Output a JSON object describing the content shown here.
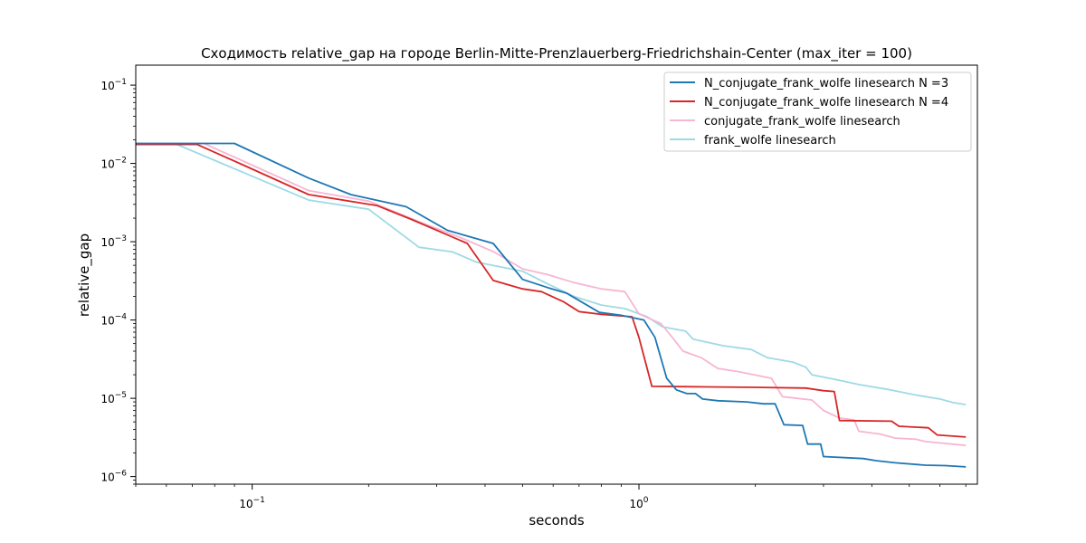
{
  "chart_data": {
    "type": "line",
    "title": "Сходимость relative_gap на городе Berlin-Mitte-Prenzlauerberg-Friedrichshain-Center  (max_iter = 100)",
    "xlabel": "seconds",
    "ylabel": "relative_gap",
    "xscale": "log",
    "yscale": "log",
    "xlim": [
      0.05,
      7.5
    ],
    "ylim": [
      8e-07,
      0.18
    ],
    "grid": false,
    "legend_position": "top-right",
    "x_ticks": [
      {
        "value": 0.1,
        "base": "10",
        "exp": "−1"
      },
      {
        "value": 1,
        "base": "10",
        "exp": "0"
      }
    ],
    "y_ticks": [
      {
        "value": 1e-06,
        "base": "10",
        "exp": "−6"
      },
      {
        "value": 1e-05,
        "base": "10",
        "exp": "−5"
      },
      {
        "value": 0.0001,
        "base": "10",
        "exp": "−4"
      },
      {
        "value": 0.001,
        "base": "10",
        "exp": "−3"
      },
      {
        "value": 0.01,
        "base": "10",
        "exp": "−2"
      },
      {
        "value": 0.1,
        "base": "10",
        "exp": "−1"
      }
    ],
    "series": [
      {
        "name": "N_conjugate_frank_wolfe linesearch N =3",
        "color": "#1f77b4",
        "points": [
          [
            0.05,
            0.018
          ],
          [
            0.09,
            0.018
          ],
          [
            0.14,
            0.0065
          ],
          [
            0.18,
            0.004
          ],
          [
            0.25,
            0.0028
          ],
          [
            0.32,
            0.0014
          ],
          [
            0.42,
            0.00095
          ],
          [
            0.5,
            0.00033
          ],
          [
            0.58,
            0.00026
          ],
          [
            0.65,
            0.00022
          ],
          [
            0.79,
            0.000125
          ],
          [
            0.9,
            0.000115
          ],
          [
            1.03,
            0.0001
          ],
          [
            1.1,
            6e-05
          ],
          [
            1.18,
            1.8e-05
          ],
          [
            1.25,
            1.28e-05
          ],
          [
            1.33,
            1.15e-05
          ],
          [
            1.4,
            1.15e-05
          ],
          [
            1.46,
            9.8e-06
          ],
          [
            1.6,
            9.3e-06
          ],
          [
            1.9,
            9e-06
          ],
          [
            2.1,
            8.5e-06
          ],
          [
            2.25,
            8.5e-06
          ],
          [
            2.37,
            4.6e-06
          ],
          [
            2.65,
            4.5e-06
          ],
          [
            2.73,
            2.6e-06
          ],
          [
            2.95,
            2.6e-06
          ],
          [
            3.0,
            1.8e-06
          ],
          [
            3.8,
            1.7e-06
          ],
          [
            4.1,
            1.6e-06
          ],
          [
            4.6,
            1.5e-06
          ],
          [
            5.5,
            1.4e-06
          ],
          [
            6.2,
            1.38e-06
          ],
          [
            7.0,
            1.33e-06
          ]
        ]
      },
      {
        "name": "N_conjugate_frank_wolfe linesearch N =4",
        "color": "#d62728",
        "points": [
          [
            0.05,
            0.0175
          ],
          [
            0.072,
            0.0175
          ],
          [
            0.095,
            0.0095
          ],
          [
            0.14,
            0.004
          ],
          [
            0.21,
            0.0029
          ],
          [
            0.26,
            0.0019
          ],
          [
            0.36,
            0.00095
          ],
          [
            0.42,
            0.00032
          ],
          [
            0.5,
            0.00025
          ],
          [
            0.56,
            0.00023
          ],
          [
            0.64,
            0.00017
          ],
          [
            0.7,
            0.000128
          ],
          [
            0.8,
            0.000118
          ],
          [
            0.96,
            0.00011
          ],
          [
            1.0,
            6e-05
          ],
          [
            1.08,
            1.42e-05
          ],
          [
            1.5,
            1.4e-05
          ],
          [
            2.0,
            1.38e-05
          ],
          [
            2.7,
            1.35e-05
          ],
          [
            3.0,
            1.25e-05
          ],
          [
            3.2,
            1.22e-05
          ],
          [
            3.3,
            5.2e-06
          ],
          [
            4.5,
            5.1e-06
          ],
          [
            4.7,
            4.4e-06
          ],
          [
            5.6,
            4.2e-06
          ],
          [
            5.9,
            3.4e-06
          ],
          [
            7.0,
            3.2e-06
          ]
        ]
      },
      {
        "name": "conjugate_frank_wolfe linesearch",
        "color": "#f7b6d2",
        "points": [
          [
            0.05,
            0.018
          ],
          [
            0.075,
            0.018
          ],
          [
            0.14,
            0.0045
          ],
          [
            0.2,
            0.0033
          ],
          [
            0.27,
            0.0018
          ],
          [
            0.35,
            0.0011
          ],
          [
            0.42,
            0.00075
          ],
          [
            0.5,
            0.00045
          ],
          [
            0.58,
            0.00038
          ],
          [
            0.68,
            0.0003
          ],
          [
            0.8,
            0.00025
          ],
          [
            0.92,
            0.00023
          ],
          [
            1.0,
            0.00012
          ],
          [
            1.14,
            9e-05
          ],
          [
            1.22,
            6e-05
          ],
          [
            1.3,
            4e-05
          ],
          [
            1.45,
            3.3e-05
          ],
          [
            1.6,
            2.4e-05
          ],
          [
            1.8,
            2.2e-05
          ],
          [
            2.2,
            1.8e-05
          ],
          [
            2.35,
            1.05e-05
          ],
          [
            2.8,
            9.5e-06
          ],
          [
            3.0,
            7e-06
          ],
          [
            3.3,
            5.6e-06
          ],
          [
            3.6,
            5.3e-06
          ],
          [
            3.7,
            3.8e-06
          ],
          [
            4.2,
            3.5e-06
          ],
          [
            4.6,
            3.1e-06
          ],
          [
            5.2,
            3e-06
          ],
          [
            5.5,
            2.8e-06
          ],
          [
            7.0,
            2.5e-06
          ]
        ]
      },
      {
        "name": "frank_wolfe linesearch",
        "color": "#9edae5",
        "points": [
          [
            0.05,
            0.018
          ],
          [
            0.063,
            0.018
          ],
          [
            0.14,
            0.0034
          ],
          [
            0.2,
            0.0026
          ],
          [
            0.27,
            0.00085
          ],
          [
            0.33,
            0.00074
          ],
          [
            0.38,
            0.00055
          ],
          [
            0.5,
            0.00042
          ],
          [
            0.58,
            0.00029
          ],
          [
            0.68,
            0.0002
          ],
          [
            0.8,
            0.000155
          ],
          [
            0.92,
            0.00014
          ],
          [
            1.05,
            0.00011
          ],
          [
            1.15,
            8.2e-05
          ],
          [
            1.32,
            7.2e-05
          ],
          [
            1.38,
            5.7e-05
          ],
          [
            1.65,
            4.7e-05
          ],
          [
            1.95,
            4.2e-05
          ],
          [
            2.15,
            3.3e-05
          ],
          [
            2.5,
            2.9e-05
          ],
          [
            2.7,
            2.5e-05
          ],
          [
            2.8,
            2e-05
          ],
          [
            3.3,
            1.7e-05
          ],
          [
            3.7,
            1.5e-05
          ],
          [
            4.4,
            1.3e-05
          ],
          [
            5.2,
            1.1e-05
          ],
          [
            6.0,
            9.8e-06
          ],
          [
            6.5,
            8.8e-06
          ],
          [
            7.0,
            8.3e-06
          ]
        ]
      }
    ]
  }
}
